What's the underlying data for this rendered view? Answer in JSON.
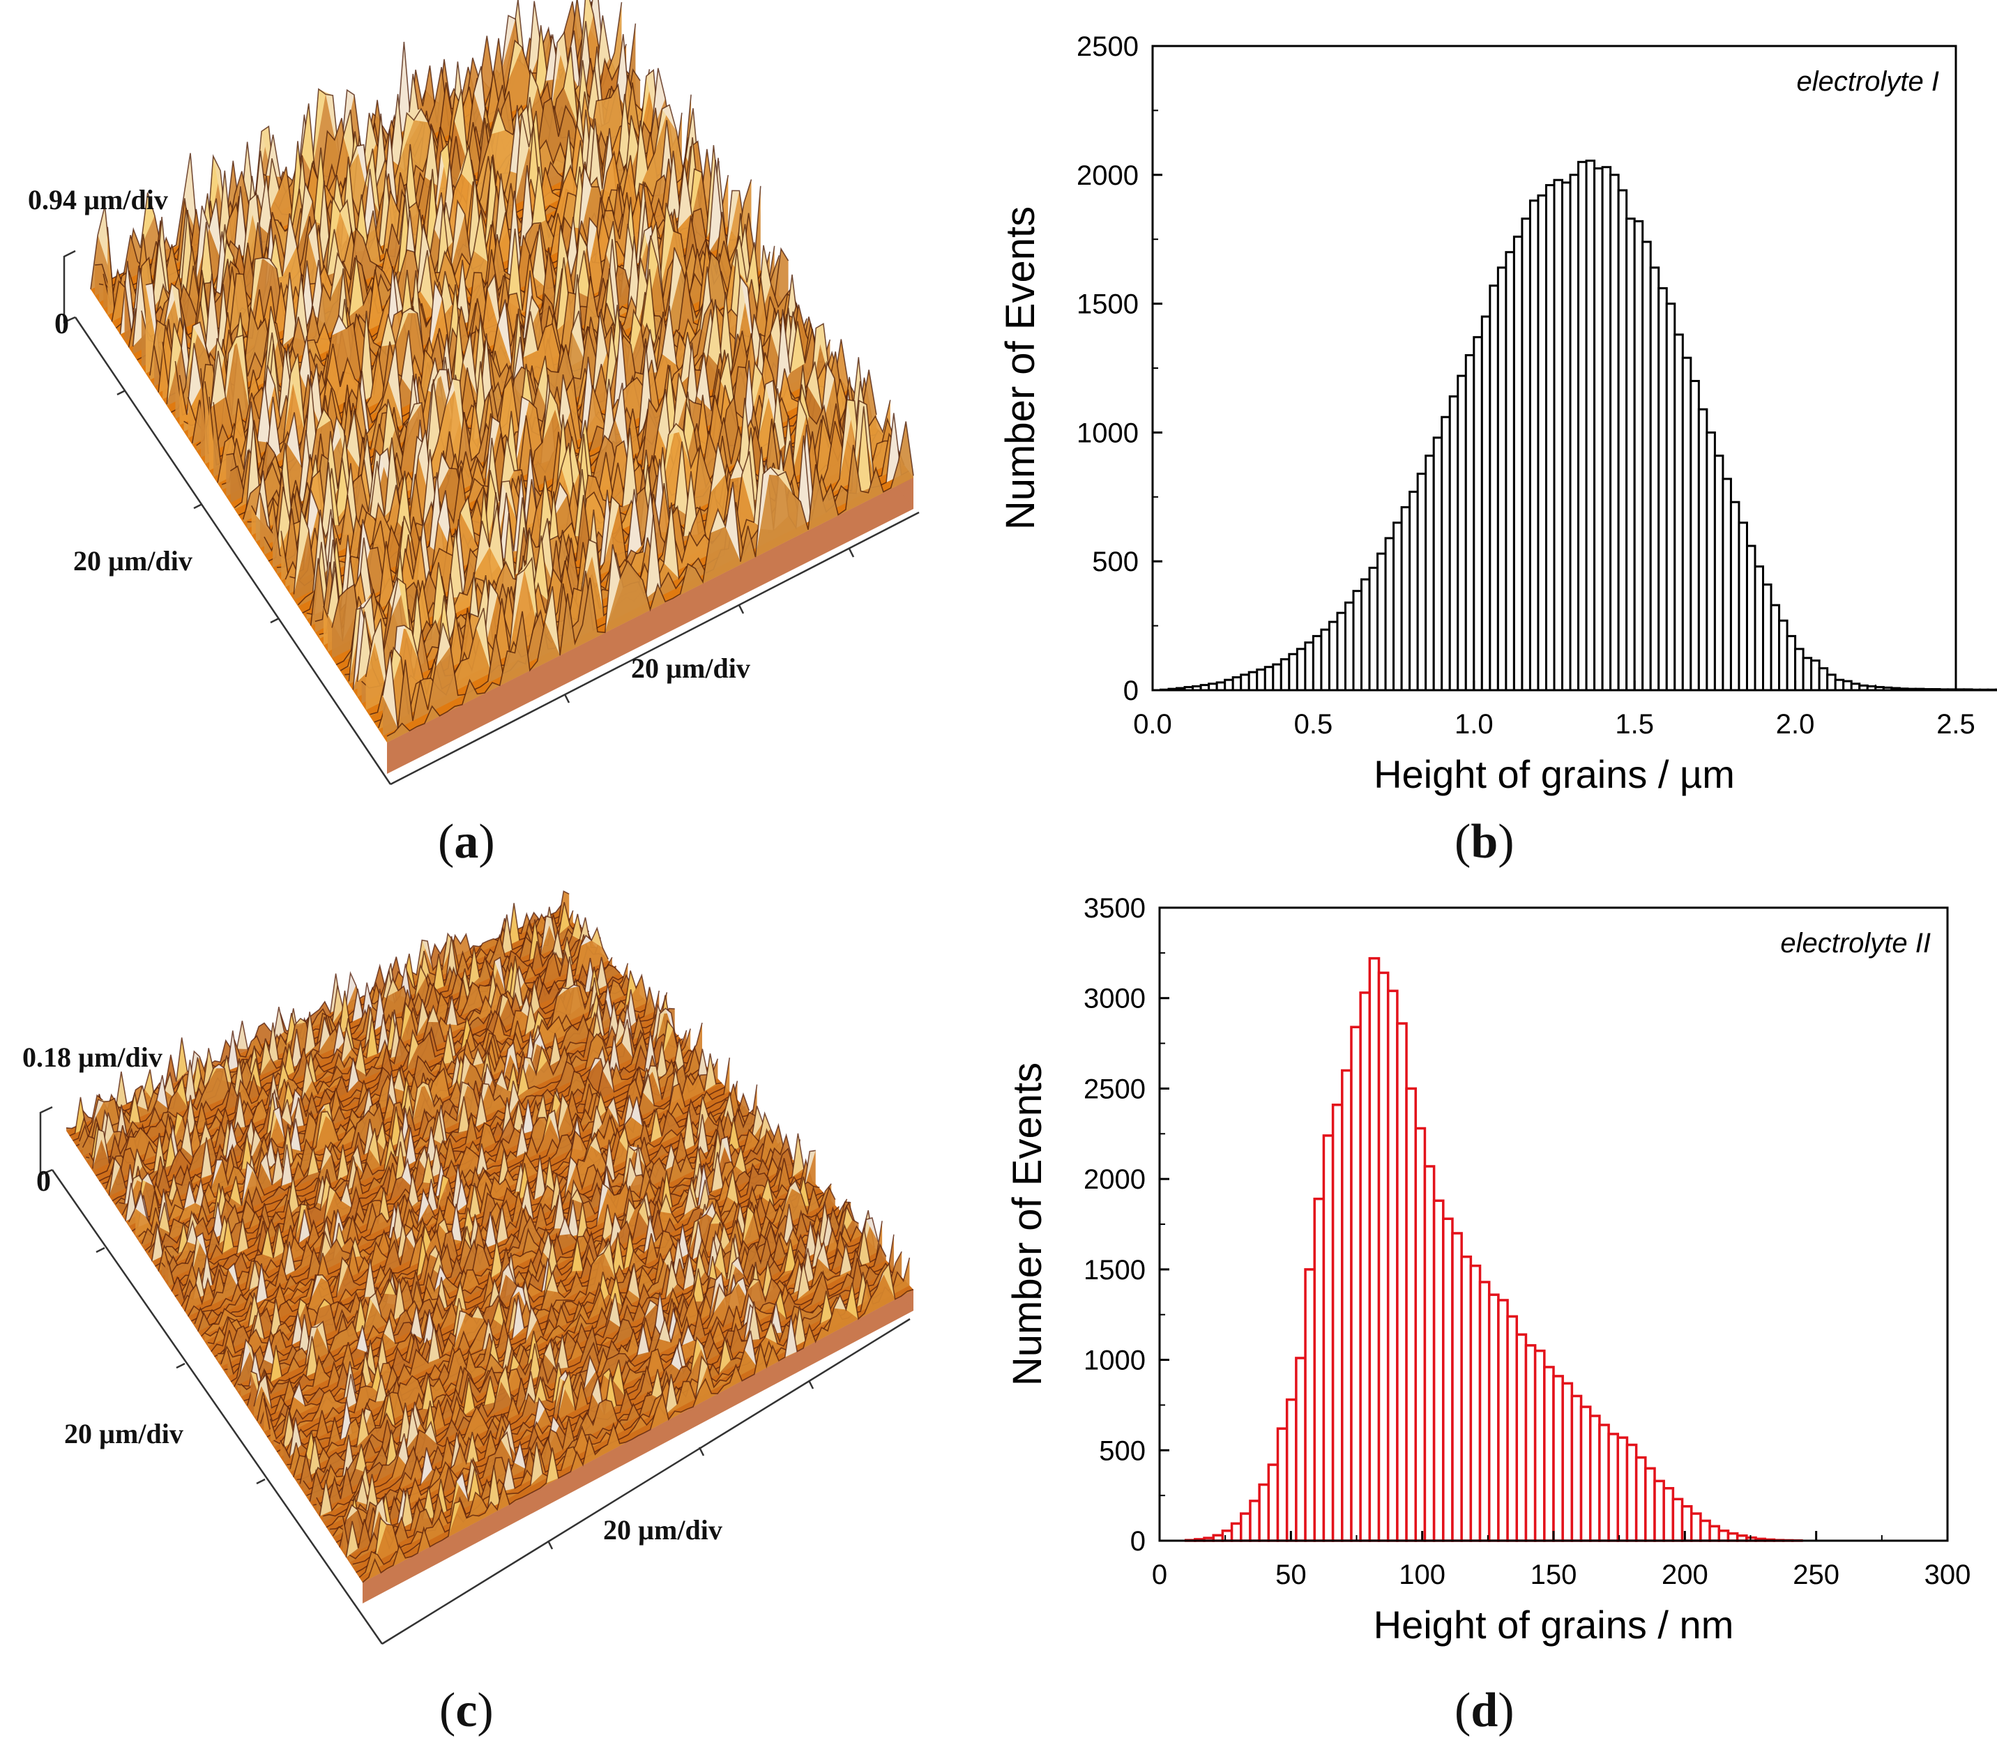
{
  "figure_captions": [
    "a",
    "b",
    "c",
    "d"
  ],
  "afm": [
    {
      "panel": "a",
      "z_scale": "0.94 µm/div",
      "z_zero": "0",
      "x_scale": "20 µm/div",
      "y_scale": "20 µm/div",
      "colors": {
        "base": "#e07a10",
        "highlight": "#f6d27a",
        "peak": "#f3e6d6",
        "shadow": "#7a2a0a",
        "side": "#c9794f"
      }
    },
    {
      "panel": "c",
      "z_scale": "0.18 µm/div",
      "z_zero": "0",
      "x_scale": "20 µm/div",
      "y_scale": "20 µm/div",
      "colors": {
        "base": "#cf6f1a",
        "highlight": "#f2c25a",
        "peak": "#ece2da",
        "shadow": "#8a2f10",
        "side": "#c9794f"
      }
    }
  ],
  "chart_data": [
    {
      "panel": "b",
      "type": "bar",
      "annotation": "electrolyte I",
      "xlabel": "Height of grains / µm",
      "ylabel": "Number of Events",
      "xlim": [
        0,
        2.5
      ],
      "ylim": [
        0,
        2500
      ],
      "xticks": [
        "0.0",
        "0.5",
        "1.0",
        "1.5",
        "2.0",
        "2.5"
      ],
      "yticks": [
        "0",
        "500",
        "1000",
        "1500",
        "2000",
        "2500"
      ],
      "bin_width": 0.025,
      "bin_start": 0.0,
      "values": [
        0,
        2,
        5,
        8,
        12,
        15,
        20,
        25,
        30,
        40,
        50,
        60,
        70,
        80,
        90,
        100,
        120,
        140,
        160,
        185,
        210,
        235,
        265,
        300,
        340,
        385,
        430,
        475,
        530,
        590,
        650,
        710,
        770,
        840,
        910,
        980,
        1060,
        1140,
        1220,
        1300,
        1370,
        1450,
        1570,
        1640,
        1700,
        1760,
        1830,
        1900,
        1920,
        1960,
        1980,
        1970,
        2000,
        2050,
        2055,
        2025,
        2030,
        2000,
        1940,
        1830,
        1820,
        1740,
        1640,
        1560,
        1500,
        1380,
        1290,
        1200,
        1090,
        1000,
        910,
        820,
        730,
        650,
        560,
        480,
        410,
        330,
        270,
        210,
        160,
        125,
        115,
        85,
        60,
        40,
        35,
        25,
        18,
        15,
        12,
        10,
        8,
        6,
        5,
        5,
        4,
        4,
        3,
        3,
        3,
        3,
        2,
        2,
        2,
        2,
        2,
        2,
        2,
        2,
        2,
        2,
        2,
        2,
        2,
        2,
        2,
        2,
        2,
        2,
        2,
        2,
        2,
        2,
        2,
        2,
        2,
        2
      ]
    },
    {
      "panel": "d",
      "type": "bar",
      "annotation": "electrolyte II",
      "xlabel": "Height of grains / nm",
      "ylabel": "Number of Events",
      "xlim": [
        0,
        300
      ],
      "ylim": [
        0,
        3500
      ],
      "xticks": [
        "0",
        "50",
        "100",
        "150",
        "200",
        "250",
        "300"
      ],
      "yticks": [
        "0",
        "500",
        "1000",
        "1500",
        "2000",
        "2500",
        "3000",
        "3500"
      ],
      "bin_width": 3.5,
      "bin_start": 10,
      "values": [
        3,
        8,
        15,
        30,
        55,
        95,
        150,
        220,
        310,
        420,
        620,
        780,
        1010,
        1500,
        1890,
        2240,
        2410,
        2600,
        2840,
        3030,
        3220,
        3140,
        3040,
        2860,
        2500,
        2280,
        2070,
        1880,
        1780,
        1700,
        1570,
        1520,
        1430,
        1360,
        1330,
        1240,
        1140,
        1080,
        1050,
        960,
        910,
        870,
        800,
        740,
        690,
        640,
        590,
        570,
        530,
        460,
        400,
        330,
        290,
        230,
        190,
        150,
        110,
        80,
        55,
        40,
        28,
        17,
        10,
        6,
        3,
        2,
        1
      ]
    }
  ]
}
